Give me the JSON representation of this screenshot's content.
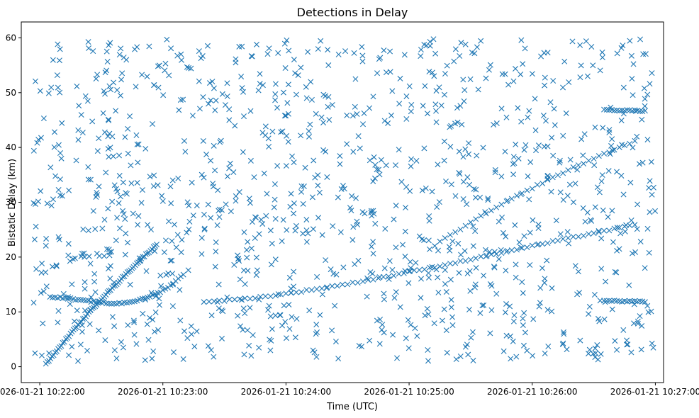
{
  "chart_data": {
    "type": "scatter",
    "title": "Detections in Delay",
    "xlabel": "Time (UTC)",
    "ylabel": "Bistatic Delay (km)",
    "xlim": [
      "2026-01-21 10:21:51",
      "2026-01-21 10:27:04"
    ],
    "ylim": [
      -2.9,
      62.9
    ],
    "x_ticks": [
      {
        "value": "2026-01-21 10:22:00",
        "label": "2026-01-21 10:22:00"
      },
      {
        "value": "2026-01-21 10:23:00",
        "label": "2026-01-21 10:23:00"
      },
      {
        "value": "2026-01-21 10:24:00",
        "label": "2026-01-21 10:24:00"
      },
      {
        "value": "2026-01-21 10:25:00",
        "label": "2026-01-21 10:25:00"
      },
      {
        "value": "2026-01-21 10:26:00",
        "label": "2026-01-21 10:26:00"
      },
      {
        "value": "2026-01-21 10:27:00",
        "label": "2026-01-21 10:27:00"
      }
    ],
    "y_ticks": [
      0,
      10,
      20,
      30,
      40,
      50,
      60
    ],
    "grid": false,
    "legend": "none",
    "marker": "x",
    "color": "#1f77b4",
    "series": [
      {
        "tracks": [
          {
            "x": [
              "2026-01-21 10:22:03",
              "2026-01-21 10:22:06",
              "2026-01-21 10:22:09",
              "2026-01-21 10:22:12",
              "2026-01-21 10:22:15",
              "2026-01-21 10:22:18",
              "2026-01-21 10:22:21",
              "2026-01-21 10:22:24",
              "2026-01-21 10:22:27",
              "2026-01-21 10:22:30",
              "2026-01-21 10:22:33",
              "2026-01-21 10:22:36",
              "2026-01-21 10:22:39",
              "2026-01-21 10:22:42",
              "2026-01-21 10:22:45",
              "2026-01-21 10:22:48",
              "2026-01-21 10:22:51",
              "2026-01-21 10:22:54",
              "2026-01-21 10:22:57"
            ],
            "y": [
              0.5,
              1.8,
              3.2,
              4.6,
              6.0,
              7.3,
              8.6,
              9.9,
              11.1,
              12.3,
              13.5,
              14.6,
              15.7,
              16.9,
              18.0,
              19.1,
              20.2,
              21.2,
              22.3
            ]
          },
          {
            "x": [
              "2026-01-21 10:22:05",
              "2026-01-21 10:22:10",
              "2026-01-21 10:22:15",
              "2026-01-21 10:22:20",
              "2026-01-21 10:22:25",
              "2026-01-21 10:22:30",
              "2026-01-21 10:22:35",
              "2026-01-21 10:22:40",
              "2026-01-21 10:22:45",
              "2026-01-21 10:22:50",
              "2026-01-21 10:22:55",
              "2026-01-21 10:23:00",
              "2026-01-21 10:23:05",
              "2026-01-21 10:23:10"
            ],
            "y": [
              12.8,
              12.6,
              12.4,
              12.1,
              11.9,
              11.7,
              11.5,
              11.6,
              11.9,
              12.3,
              13.0,
              13.9,
              15.2,
              16.8
            ]
          },
          {
            "x": [
              "2026-01-21 10:23:20",
              "2026-01-21 10:23:30",
              "2026-01-21 10:23:40",
              "2026-01-21 10:23:50",
              "2026-01-21 10:24:00",
              "2026-01-21 10:24:10",
              "2026-01-21 10:24:20",
              "2026-01-21 10:24:30",
              "2026-01-21 10:24:40",
              "2026-01-21 10:24:50",
              "2026-01-21 10:25:00",
              "2026-01-21 10:25:10",
              "2026-01-21 10:25:20",
              "2026-01-21 10:25:30",
              "2026-01-21 10:25:40",
              "2026-01-21 10:25:50",
              "2026-01-21 10:26:00",
              "2026-01-21 10:26:10",
              "2026-01-21 10:26:20",
              "2026-01-21 10:26:30",
              "2026-01-21 10:26:40",
              "2026-01-21 10:26:50"
            ],
            "y": [
              11.9,
              12.1,
              12.4,
              12.8,
              13.3,
              13.9,
              14.5,
              15.1,
              15.8,
              16.5,
              17.3,
              18.0,
              18.8,
              19.6,
              20.4,
              21.2,
              22.0,
              22.8,
              23.6,
              24.4,
              25.1,
              25.9
            ]
          },
          {
            "x": [
              "2026-01-21 10:25:10",
              "2026-01-21 10:25:20",
              "2026-01-21 10:25:30",
              "2026-01-21 10:25:40",
              "2026-01-21 10:25:50",
              "2026-01-21 10:26:00",
              "2026-01-21 10:26:10",
              "2026-01-21 10:26:20",
              "2026-01-21 10:26:30",
              "2026-01-21 10:26:40",
              "2026-01-21 10:26:50"
            ],
            "y": [
              21.5,
              24.0,
              26.3,
              28.5,
              30.6,
              32.6,
              34.5,
              36.3,
              38.0,
              39.6,
              41.2
            ]
          },
          {
            "x": [
              "2026-01-21 10:26:35",
              "2026-01-21 10:26:40",
              "2026-01-21 10:26:45",
              "2026-01-21 10:26:50",
              "2026-01-21 10:26:55"
            ],
            "y": [
              46.8,
              46.8,
              46.8,
              46.7,
              46.7
            ]
          },
          {
            "x": [
              "2026-01-21 10:26:35",
              "2026-01-21 10:26:40",
              "2026-01-21 10:26:45",
              "2026-01-21 10:26:50",
              "2026-01-21 10:26:55"
            ],
            "y": [
              12.0,
              12.0,
              11.9,
              11.9,
              11.8
            ]
          }
        ],
        "clutter": {
          "x_range": [
            "2026-01-21 10:21:57",
            "2026-01-21 10:27:00"
          ],
          "y_range": [
            1.0,
            59.8
          ]
        }
      }
    ]
  }
}
